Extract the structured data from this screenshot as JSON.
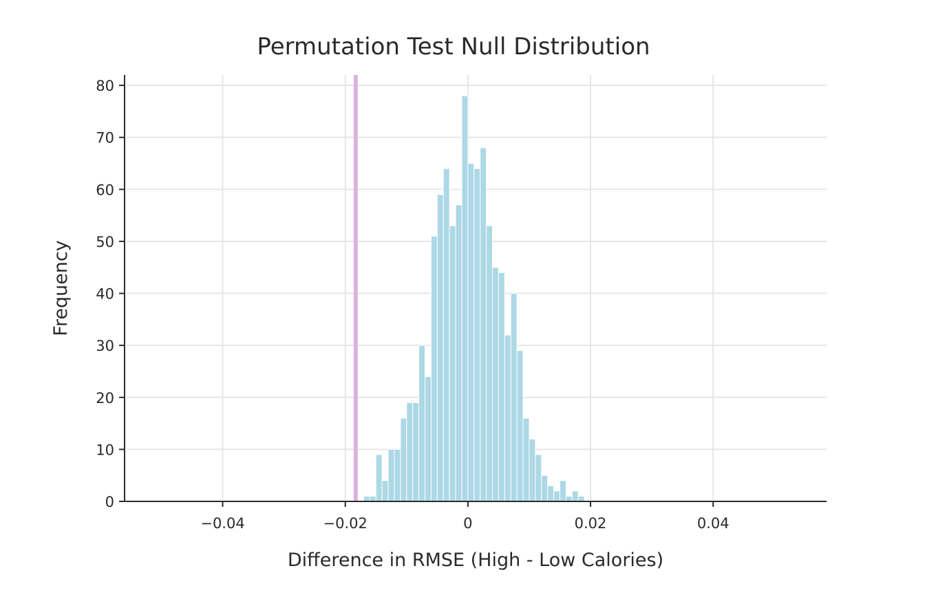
{
  "chart_data": {
    "type": "bar",
    "title": "Permutation Test Null Distribution",
    "xlabel": "Difference in RMSE (High - Low Calories)",
    "ylabel": "Frequency",
    "xlim": [
      -0.056,
      0.0585
    ],
    "ylim": [
      0,
      82
    ],
    "x_ticks": [
      {
        "value": -0.04,
        "label": "−0.04"
      },
      {
        "value": -0.02,
        "label": "−0.02"
      },
      {
        "value": 0,
        "label": "0"
      },
      {
        "value": 0.02,
        "label": "0.02"
      },
      {
        "value": 0.04,
        "label": "0.04"
      }
    ],
    "y_ticks": [
      {
        "value": 0,
        "label": "0"
      },
      {
        "value": 10,
        "label": "10"
      },
      {
        "value": 20,
        "label": "20"
      },
      {
        "value": 30,
        "label": "30"
      },
      {
        "value": 40,
        "label": "40"
      },
      {
        "value": 50,
        "label": "50"
      },
      {
        "value": 60,
        "label": "60"
      },
      {
        "value": 70,
        "label": "70"
      },
      {
        "value": 80,
        "label": "80"
      }
    ],
    "grid": true,
    "bar_color": "#add8e6",
    "bin_width": 0.001,
    "bins": [
      {
        "start": -0.017,
        "count": 1
      },
      {
        "start": -0.016,
        "count": 1
      },
      {
        "start": -0.015,
        "count": 9
      },
      {
        "start": -0.014,
        "count": 4
      },
      {
        "start": -0.013,
        "count": 10
      },
      {
        "start": -0.012,
        "count": 10
      },
      {
        "start": -0.011,
        "count": 16
      },
      {
        "start": -0.01,
        "count": 19
      },
      {
        "start": -0.009,
        "count": 19
      },
      {
        "start": -0.008,
        "count": 30
      },
      {
        "start": -0.007,
        "count": 24
      },
      {
        "start": -0.006,
        "count": 51
      },
      {
        "start": -0.005,
        "count": 59
      },
      {
        "start": -0.004,
        "count": 64
      },
      {
        "start": -0.003,
        "count": 53
      },
      {
        "start": -0.002,
        "count": 57
      },
      {
        "start": -0.001,
        "count": 78
      },
      {
        "start": 0.0,
        "count": 65
      },
      {
        "start": 0.001,
        "count": 64
      },
      {
        "start": 0.002,
        "count": 68
      },
      {
        "start": 0.003,
        "count": 53
      },
      {
        "start": 0.004,
        "count": 45
      },
      {
        "start": 0.005,
        "count": 44
      },
      {
        "start": 0.006,
        "count": 32
      },
      {
        "start": 0.007,
        "count": 40
      },
      {
        "start": 0.008,
        "count": 29
      },
      {
        "start": 0.009,
        "count": 16
      },
      {
        "start": 0.01,
        "count": 12
      },
      {
        "start": 0.011,
        "count": 9
      },
      {
        "start": 0.012,
        "count": 5
      },
      {
        "start": 0.013,
        "count": 3
      },
      {
        "start": 0.014,
        "count": 2
      },
      {
        "start": 0.015,
        "count": 4
      },
      {
        "start": 0.016,
        "count": 1
      },
      {
        "start": 0.017,
        "count": 2
      },
      {
        "start": 0.018,
        "count": 1
      }
    ],
    "observed_line": {
      "x": -0.0183,
      "color": "#d8b4dc"
    }
  }
}
